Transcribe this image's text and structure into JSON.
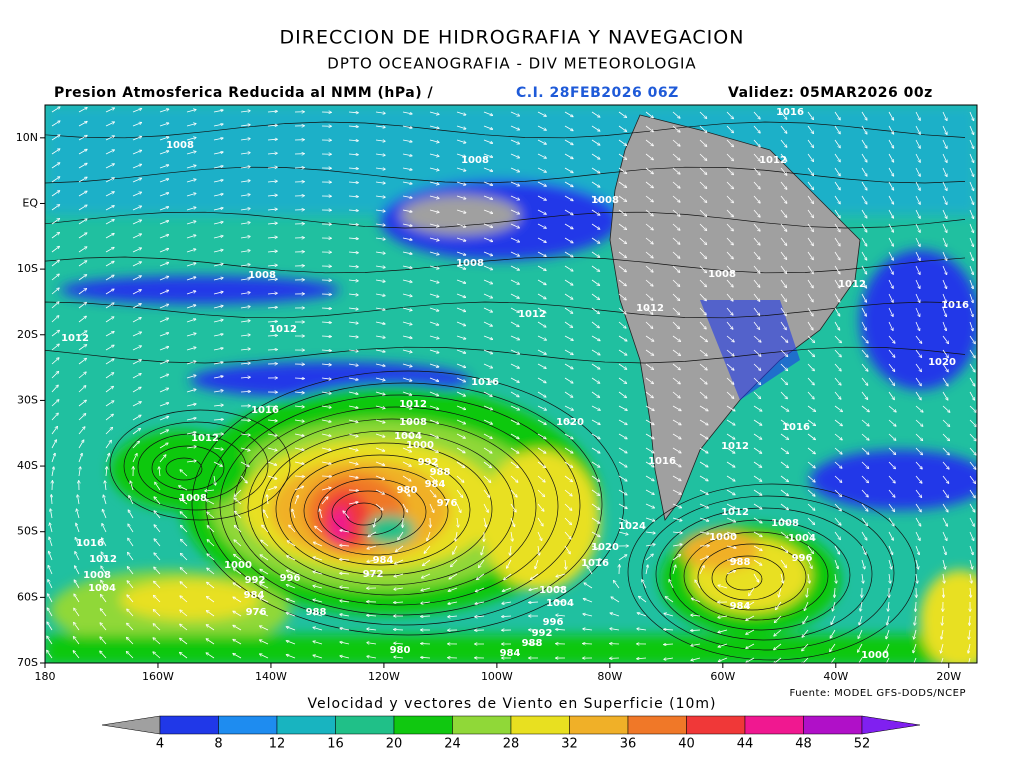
{
  "header": {
    "title": "DIRECCION DE HIDROGRAFIA Y NAVEGACION",
    "subtitle": "DPTO OCEANOGRAFIA - DIV METEOROLOGIA",
    "product": "Presion Atmosferica Reducida al NMM (hPa) /",
    "init": "C.I. 28FEB2026 06Z",
    "valid": "Validez: 05MAR2026 00z"
  },
  "map": {
    "lonlim": [
      -180,
      -15
    ],
    "latlim": [
      15,
      -70
    ],
    "lon_ticks": [
      {
        "value": -180,
        "label": "180"
      },
      {
        "value": -160,
        "label": "160W"
      },
      {
        "value": -140,
        "label": "140W"
      },
      {
        "value": -120,
        "label": "120W"
      },
      {
        "value": -100,
        "label": "100W"
      },
      {
        "value": -80,
        "label": "80W"
      },
      {
        "value": -60,
        "label": "60W"
      },
      {
        "value": -40,
        "label": "40W"
      },
      {
        "value": -20,
        "label": "20W"
      }
    ],
    "lat_ticks": [
      {
        "value": 10,
        "label": "10N"
      },
      {
        "value": 0,
        "label": "EQ"
      },
      {
        "value": -10,
        "label": "10S"
      },
      {
        "value": -20,
        "label": "20S"
      },
      {
        "value": -30,
        "label": "30S"
      },
      {
        "value": -40,
        "label": "40S"
      },
      {
        "value": -50,
        "label": "50S"
      },
      {
        "value": -60,
        "label": "60S"
      },
      {
        "value": -70,
        "label": "70S"
      }
    ],
    "isobar_labels": [
      1008,
      1008,
      1012,
      1008,
      1008,
      1008,
      1008,
      1012,
      1016,
      1012,
      1012,
      1012,
      1012,
      1020,
      1016,
      1016,
      1012,
      1008,
      1004,
      1000,
      992,
      988,
      984,
      980,
      976,
      1012,
      1020,
      1012,
      1016,
      1016,
      1008,
      1012,
      1008,
      1004,
      1024,
      1000,
      1020,
      1016,
      1016,
      1012,
      1008,
      1004,
      1000,
      992,
      996,
      984,
      976,
      984,
      972,
      988,
      988,
      996,
      984,
      1008,
      1004,
      996,
      992,
      988,
      984,
      980,
      1000,
      1016
    ]
  },
  "colorbar": {
    "label": "Velocidad y vectores de Viento en Superficie (10m)",
    "ticks": [
      4,
      8,
      12,
      16,
      20,
      24,
      28,
      32,
      36,
      40,
      44,
      48,
      52
    ],
    "colors": [
      "#a0a0a0",
      "#2038e8",
      "#1e8cf0",
      "#18b4c0",
      "#20c088",
      "#10c810",
      "#90d838",
      "#e8e020",
      "#f0b028",
      "#f07828",
      "#f03838",
      "#f01890",
      "#b010c8",
      "#8020f0"
    ]
  },
  "source": "Fuente: MODEL GFS-DODS/NCEP"
}
